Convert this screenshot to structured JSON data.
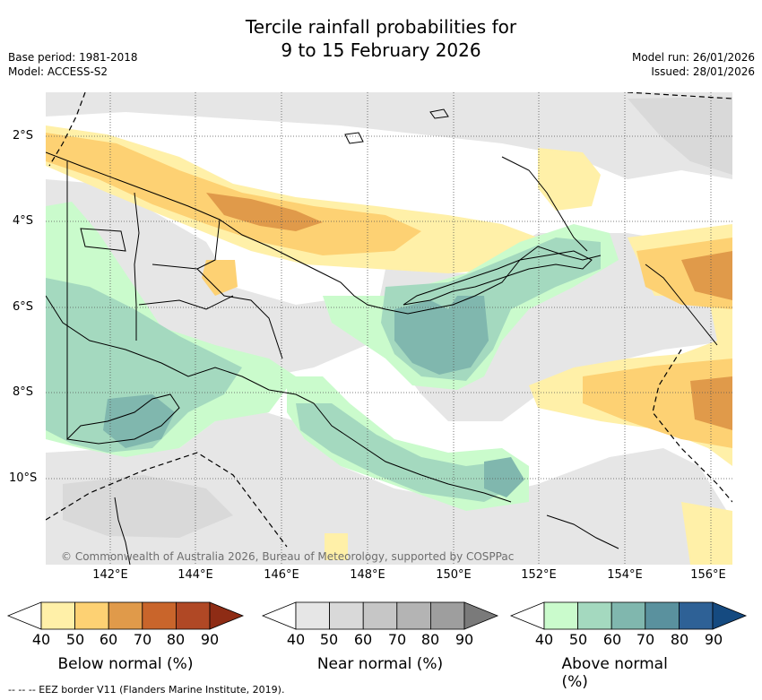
{
  "title": {
    "line1": "Tercile rainfall probabilities for",
    "line2": "9 to 15 February 2026"
  },
  "meta": {
    "base_period": "Base period: 1981-2018",
    "model": "Model: ACCESS-S2",
    "model_run": "Model run: 26/01/2026",
    "issued": "Issued: 28/01/2026"
  },
  "map": {
    "lat_labels": [
      "2°S",
      "4°S",
      "6°S",
      "8°S",
      "10°S"
    ],
    "lon_labels": [
      "142°E",
      "144°E",
      "146°E",
      "148°E",
      "150°E",
      "152°E",
      "154°E",
      "156°E"
    ],
    "copyright": "© Commonwealth of Australia 2026, Bureau of Meteorology, supported by COSPPac",
    "gridlines": true
  },
  "colorbars": [
    {
      "title": "Below normal (%)",
      "ticks": [
        "40",
        "50",
        "60",
        "70",
        "80",
        "90"
      ],
      "colors": [
        "#fff0a8",
        "#fdd173",
        "#e09a4a",
        "#c9652b",
        "#b04825",
        "#8e2c15"
      ]
    },
    {
      "title": "Near normal (%)",
      "ticks": [
        "40",
        "50",
        "60",
        "70",
        "80",
        "90"
      ],
      "colors": [
        "#e6e6e6",
        "#d9d9d9",
        "#c6c6c6",
        "#b4b4b4",
        "#9e9e9e",
        "#7a7a7a"
      ]
    },
    {
      "title": "Above normal (%)",
      "ticks": [
        "40",
        "50",
        "60",
        "70",
        "80",
        "90"
      ],
      "colors": [
        "#cafbcc",
        "#a4d9bf",
        "#80b7ae",
        "#5a919e",
        "#2e6196",
        "#154a80"
      ]
    }
  ],
  "footnote": "-- -- -- EEZ border V11 (Flanders Marine Institute, 2019)."
}
